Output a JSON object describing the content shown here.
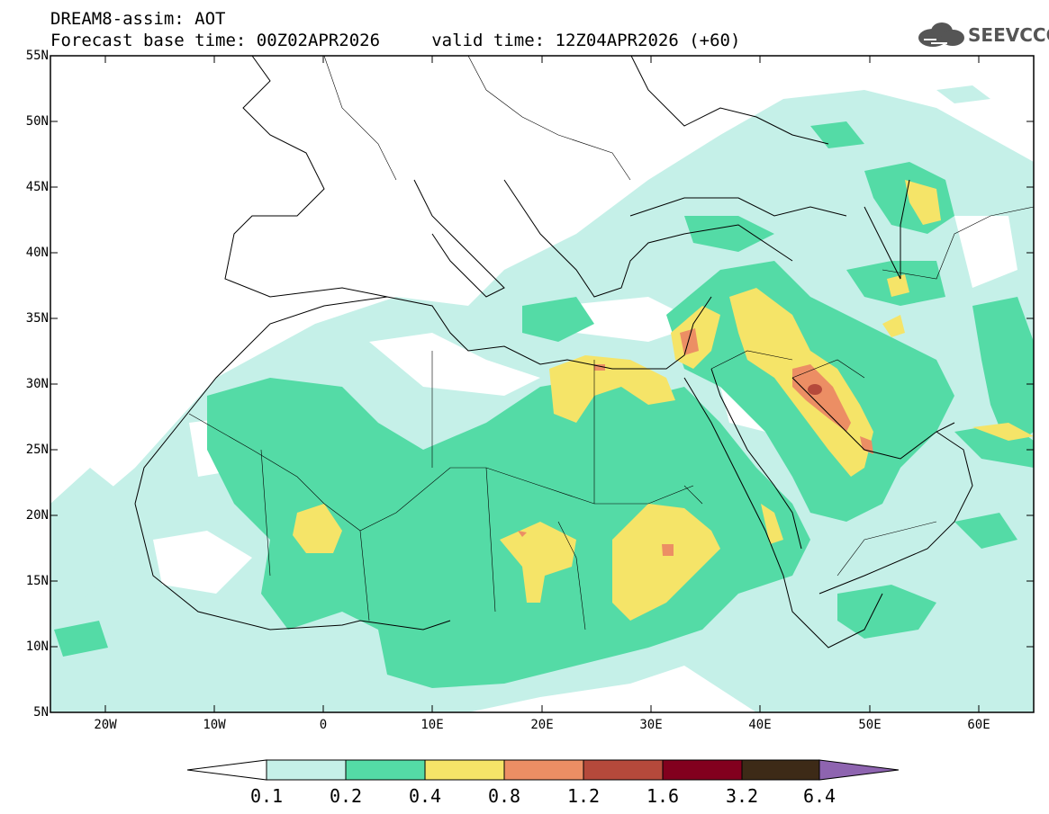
{
  "header": {
    "title_line1": "DREAM8-assim: AOT",
    "title_line2": "Forecast base time: 00Z02APR2026     valid time: 12Z04APR2026 (+60)"
  },
  "logo": {
    "text": "SEEVCCC",
    "icon": "cloud-icon"
  },
  "map": {
    "lat_ticks": [
      "55N",
      "50N",
      "45N",
      "40N",
      "35N",
      "30N",
      "25N",
      "20N",
      "15N",
      "10N",
      "5N"
    ],
    "lon_ticks": [
      "20W",
      "10W",
      "0",
      "10E",
      "20E",
      "30E",
      "40E",
      "50E",
      "60E"
    ]
  },
  "colorbar": {
    "labels": [
      "0.1",
      "0.2",
      "0.4",
      "0.8",
      "1.2",
      "1.6",
      "3.2",
      "6.4"
    ],
    "colors": [
      "#ffffff",
      "#c5f0e8",
      "#54dba6",
      "#f5e468",
      "#ec8e64",
      "#b5493b",
      "#82001e",
      "#3d2a17",
      "#8e64b0"
    ]
  }
}
